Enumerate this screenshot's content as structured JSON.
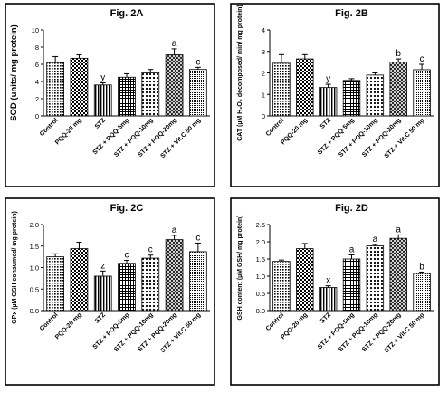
{
  "chart_data": [
    {
      "type": "bar",
      "title": "Fig. 2A",
      "ylabel": "SOD (units/ mg protein)",
      "ylim": [
        0,
        10
      ],
      "yticks": [
        "0",
        "2",
        "4",
        "6",
        "8",
        "10"
      ],
      "categories": [
        "Control",
        "PQQ-20 mg",
        "STZ",
        "STZ + PQQ-5mg",
        "STZ + PQQ-10mg",
        "STZ + PQQ-20mg",
        "STZ + Vit.C 50 mg"
      ],
      "values": [
        6.2,
        6.7,
        3.6,
        4.5,
        5.0,
        7.1,
        5.4
      ],
      "errors": [
        0.7,
        0.4,
        0.25,
        0.4,
        0.4,
        0.7,
        0.25
      ],
      "letters": [
        "",
        "",
        "y",
        "",
        "",
        "a",
        "c"
      ]
    },
    {
      "type": "bar",
      "title": "Fig. 2B",
      "ylabel": "CAT (µM H₂O₂ decomposed/ min/ mg protein)",
      "ylim": [
        0,
        4
      ],
      "yticks": [
        "0",
        "1",
        "2",
        "3",
        "4"
      ],
      "categories": [
        "Control",
        "PQQ-20 mg",
        "STZ",
        "STZ + PQQ-5mg",
        "STZ + PQQ-10mg",
        "STZ + PQQ-20mg",
        "STZ + Vit.C 50 mg"
      ],
      "values": [
        2.45,
        2.65,
        1.32,
        1.65,
        1.9,
        2.5,
        2.15
      ],
      "errors": [
        0.4,
        0.2,
        0.15,
        0.08,
        0.1,
        0.15,
        0.25
      ],
      "letters": [
        "",
        "",
        "y",
        "",
        "",
        "b",
        "c"
      ]
    },
    {
      "type": "bar",
      "title": "Fig. 2C",
      "ylabel": "GPx (µM GSH consumed/ mg protein)",
      "ylim": [
        0,
        2.0
      ],
      "yticks": [
        "0.0",
        "0.5",
        "1.0",
        "1.5",
        "2.0"
      ],
      "categories": [
        "Control",
        "PQQ-20 mg",
        "STZ",
        "STZ + PQQ-5mg",
        "STZ + PQQ-10mg",
        "STZ + PQQ-20mg",
        "STZ + Vit.C 50 mg"
      ],
      "values": [
        1.25,
        1.44,
        0.8,
        1.1,
        1.22,
        1.65,
        1.37
      ],
      "errors": [
        0.07,
        0.15,
        0.12,
        0.07,
        0.07,
        0.1,
        0.2
      ],
      "letters": [
        "",
        "",
        "z",
        "c",
        "c",
        "a",
        "c"
      ]
    },
    {
      "type": "bar",
      "title": "Fig. 2D",
      "ylabel": "GSH content (µM GSH/ mg protein)",
      "ylim": [
        0,
        2.5
      ],
      "yticks": [
        "0.0",
        "0.5",
        "1.0",
        "1.5",
        "2.0",
        "2.5"
      ],
      "categories": [
        "Control",
        "PQQ-20 mg",
        "STZ",
        "STZ + PQQ-5mg",
        "STZ + PQQ-10mg",
        "STZ + PQQ-20mg",
        "STZ + Vit.C 50 mg"
      ],
      "values": [
        1.43,
        1.8,
        0.67,
        1.5,
        1.88,
        2.1,
        1.08
      ],
      "errors": [
        0.04,
        0.15,
        0.05,
        0.12,
        0.04,
        0.1,
        0.04
      ],
      "letters": [
        "",
        "",
        "x",
        "a",
        "a",
        "a",
        "b"
      ]
    }
  ]
}
